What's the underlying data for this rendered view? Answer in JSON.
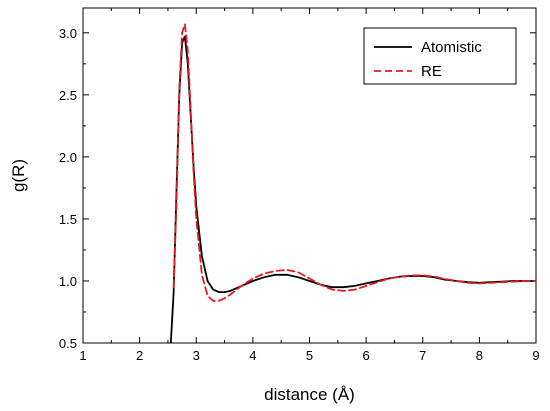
{
  "chart_data": {
    "type": "line",
    "title": "",
    "xlabel": "distance (Å)",
    "ylabel": "g(R)",
    "xlim": [
      1,
      9
    ],
    "ylim": [
      0.5,
      3.2
    ],
    "x_ticks": [
      1,
      2,
      3,
      4,
      5,
      6,
      7,
      8,
      9
    ],
    "y_ticks": [
      0.5,
      1.0,
      1.5,
      2.0,
      2.5,
      3.0
    ],
    "x_tick_labels": [
      "1",
      "2",
      "3",
      "4",
      "5",
      "6",
      "7",
      "8",
      "9"
    ],
    "y_tick_labels": [
      "0.5",
      "1.0",
      "1.5",
      "2.0",
      "2.5",
      "3.0"
    ],
    "grid": false,
    "legend_position": "top-right",
    "series": [
      {
        "name": "Atomistic",
        "color": "#000000",
        "dash": "solid",
        "x": [
          2.55,
          2.6,
          2.65,
          2.7,
          2.75,
          2.8,
          2.85,
          2.9,
          2.95,
          3.0,
          3.1,
          3.2,
          3.3,
          3.4,
          3.5,
          3.6,
          3.8,
          4.0,
          4.2,
          4.4,
          4.6,
          4.8,
          5.0,
          5.2,
          5.4,
          5.6,
          5.8,
          6.0,
          6.2,
          6.4,
          6.6,
          6.8,
          7.0,
          7.2,
          7.4,
          7.6,
          7.8,
          8.0,
          8.2,
          8.4,
          8.6,
          8.8,
          9.0
        ],
        "y": [
          0.5,
          0.9,
          1.7,
          2.5,
          2.92,
          2.97,
          2.75,
          2.35,
          1.95,
          1.6,
          1.2,
          1.0,
          0.93,
          0.91,
          0.91,
          0.92,
          0.96,
          1.0,
          1.03,
          1.05,
          1.05,
          1.03,
          1.0,
          0.97,
          0.95,
          0.95,
          0.96,
          0.98,
          1.0,
          1.02,
          1.035,
          1.04,
          1.04,
          1.03,
          1.01,
          1.0,
          0.99,
          0.985,
          0.99,
          0.995,
          1.0,
          1.0,
          1.0
        ]
      },
      {
        "name": "RE",
        "color": "#e8191e",
        "dash": "dashed",
        "x": [
          2.6,
          2.65,
          2.7,
          2.75,
          2.8,
          2.85,
          2.9,
          2.95,
          3.0,
          3.1,
          3.2,
          3.3,
          3.4,
          3.5,
          3.6,
          3.8,
          4.0,
          4.2,
          4.4,
          4.6,
          4.8,
          5.0,
          5.2,
          5.4,
          5.6,
          5.8,
          6.0,
          6.2,
          6.4,
          6.6,
          6.8,
          7.0,
          7.2,
          7.4,
          7.6,
          7.8,
          8.0,
          8.2,
          8.4,
          8.6,
          8.8,
          9.0
        ],
        "y": [
          0.95,
          1.6,
          2.55,
          3.0,
          3.07,
          2.85,
          2.4,
          1.9,
          1.5,
          1.05,
          0.88,
          0.84,
          0.84,
          0.86,
          0.89,
          0.96,
          1.02,
          1.06,
          1.08,
          1.09,
          1.07,
          1.02,
          0.97,
          0.93,
          0.92,
          0.93,
          0.96,
          0.99,
          1.02,
          1.035,
          1.045,
          1.045,
          1.035,
          1.015,
          1.0,
          0.985,
          0.98,
          0.985,
          0.99,
          0.995,
          1.0,
          1.0
        ]
      }
    ]
  }
}
